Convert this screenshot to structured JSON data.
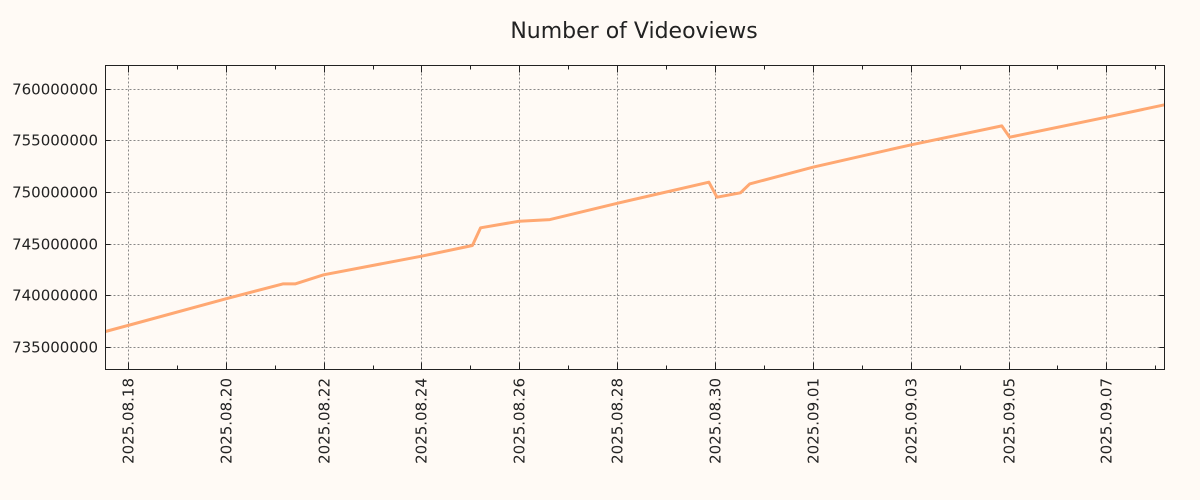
{
  "chart_data": {
    "type": "line",
    "title": "Number of Videoviews",
    "xlabel": "",
    "ylabel": "",
    "grid": true,
    "xlim": [
      "2025-08-17T13:00",
      "2025-09-08T04:30"
    ],
    "ylim": [
      732800000,
      762260000
    ],
    "x_ticks": [
      "2025.08.18",
      "2025.08.20",
      "2025.08.22",
      "2025.08.24",
      "2025.08.26",
      "2025.08.28",
      "2025.08.30",
      "2025.09.01",
      "2025.09.03",
      "2025.09.05",
      "2025.09.07"
    ],
    "x_tick_dates": [
      "2025-08-18",
      "2025-08-20",
      "2025-08-22",
      "2025-08-24",
      "2025-08-26",
      "2025-08-28",
      "2025-08-30",
      "2025-09-01",
      "2025-09-03",
      "2025-09-05",
      "2025-09-07"
    ],
    "y_ticks": [
      735000000,
      740000000,
      745000000,
      750000000,
      755000000,
      760000000
    ],
    "line_color": "#ffa872",
    "series": [
      {
        "name": "Number of Videoviews",
        "points": [
          [
            "2025-08-17T13:00",
            736480000
          ],
          [
            "2025-08-18T00:00",
            737060000
          ],
          [
            "2025-08-20T00:00",
            739650000
          ],
          [
            "2025-08-21T04:00",
            741100000
          ],
          [
            "2025-08-21T10:00",
            741100000
          ],
          [
            "2025-08-22T00:00",
            741980000
          ],
          [
            "2025-08-24T00:00",
            743780000
          ],
          [
            "2025-08-25T01:00",
            744820000
          ],
          [
            "2025-08-25T05:00",
            746530000
          ],
          [
            "2025-08-26T00:00",
            747170000
          ],
          [
            "2025-08-26T15:00",
            747330000
          ],
          [
            "2025-08-28T00:00",
            748910000
          ],
          [
            "2025-08-29T21:00",
            750950000
          ],
          [
            "2025-08-30T01:00",
            749500000
          ],
          [
            "2025-08-30T12:30",
            749920000
          ],
          [
            "2025-08-30T17:00",
            750790000
          ],
          [
            "2025-09-01T00:00",
            752400000
          ],
          [
            "2025-09-03T00:00",
            754570000
          ],
          [
            "2025-09-04T20:40",
            756410000
          ],
          [
            "2025-09-05T00:30",
            755310000
          ],
          [
            "2025-09-07T00:00",
            757250000
          ],
          [
            "2025-09-08T04:30",
            758450000
          ]
        ]
      }
    ]
  }
}
